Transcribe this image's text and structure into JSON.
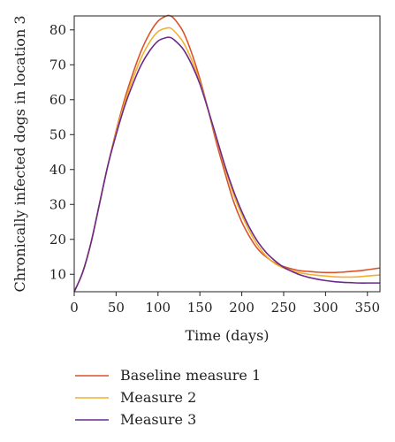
{
  "chart_data": {
    "type": "line",
    "title": "",
    "xlabel": "Time (days)",
    "ylabel": "Chronically infected dogs in location 3",
    "xlim": [
      0,
      365
    ],
    "ylim": [
      5,
      84
    ],
    "xticks": [
      0,
      50,
      100,
      150,
      200,
      250,
      300,
      350
    ],
    "yticks": [
      10,
      20,
      30,
      40,
      50,
      60,
      70,
      80
    ],
    "grid": false,
    "legend_position": "bottom",
    "series": [
      {
        "name": "Baseline measure 1",
        "color": "#d9542b",
        "x": [
          0,
          10,
          20,
          30,
          40,
          50,
          60,
          70,
          80,
          90,
          100,
          110,
          115,
          120,
          130,
          140,
          150,
          160,
          170,
          180,
          190,
          200,
          210,
          220,
          230,
          240,
          250,
          260,
          270,
          280,
          290,
          300,
          310,
          320,
          330,
          340,
          350,
          365
        ],
        "y": [
          5,
          10.5,
          19,
          30,
          41,
          51,
          60,
          67.5,
          74,
          79,
          82.5,
          84,
          84,
          83,
          79.5,
          73.5,
          66,
          57,
          47.5,
          39,
          31,
          25,
          20.5,
          17,
          14.8,
          13.2,
          12.2,
          11.5,
          11,
          10.8,
          10.6,
          10.5,
          10.5,
          10.6,
          10.8,
          11,
          11.3,
          11.8
        ]
      },
      {
        "name": "Measure 2",
        "color": "#f0b030",
        "x": [
          0,
          10,
          20,
          30,
          40,
          50,
          60,
          70,
          80,
          90,
          100,
          110,
          115,
          120,
          130,
          140,
          150,
          160,
          170,
          180,
          190,
          200,
          210,
          220,
          230,
          240,
          250,
          260,
          270,
          280,
          290,
          300,
          310,
          320,
          330,
          340,
          350,
          365
        ],
        "y": [
          5,
          10.5,
          19,
          30,
          41,
          50.5,
          59,
          66,
          72,
          76.5,
          79.5,
          80.5,
          80.5,
          79.5,
          76.5,
          71.5,
          65,
          57,
          48.5,
          40.5,
          33,
          27,
          22,
          18,
          15,
          13,
          11.8,
          11,
          10.4,
          10,
          9.7,
          9.5,
          9.3,
          9.2,
          9.2,
          9.3,
          9.5,
          9.8
        ]
      },
      {
        "name": "Measure 3",
        "color": "#6a2a8c",
        "x": [
          0,
          10,
          20,
          30,
          40,
          50,
          60,
          70,
          80,
          90,
          100,
          110,
          115,
          120,
          130,
          140,
          150,
          160,
          170,
          180,
          190,
          200,
          210,
          220,
          230,
          240,
          250,
          260,
          270,
          280,
          290,
          300,
          310,
          320,
          330,
          340,
          350,
          365
        ],
        "y": [
          5,
          10.5,
          19,
          30,
          41,
          50,
          58,
          64.5,
          70,
          74,
          76.8,
          77.8,
          77.8,
          77,
          74.5,
          70.2,
          64.5,
          57,
          49,
          41,
          34,
          28,
          23,
          19,
          16,
          13.8,
          12,
          10.8,
          9.8,
          9.1,
          8.6,
          8.2,
          7.9,
          7.7,
          7.6,
          7.5,
          7.5,
          7.5
        ]
      }
    ]
  }
}
